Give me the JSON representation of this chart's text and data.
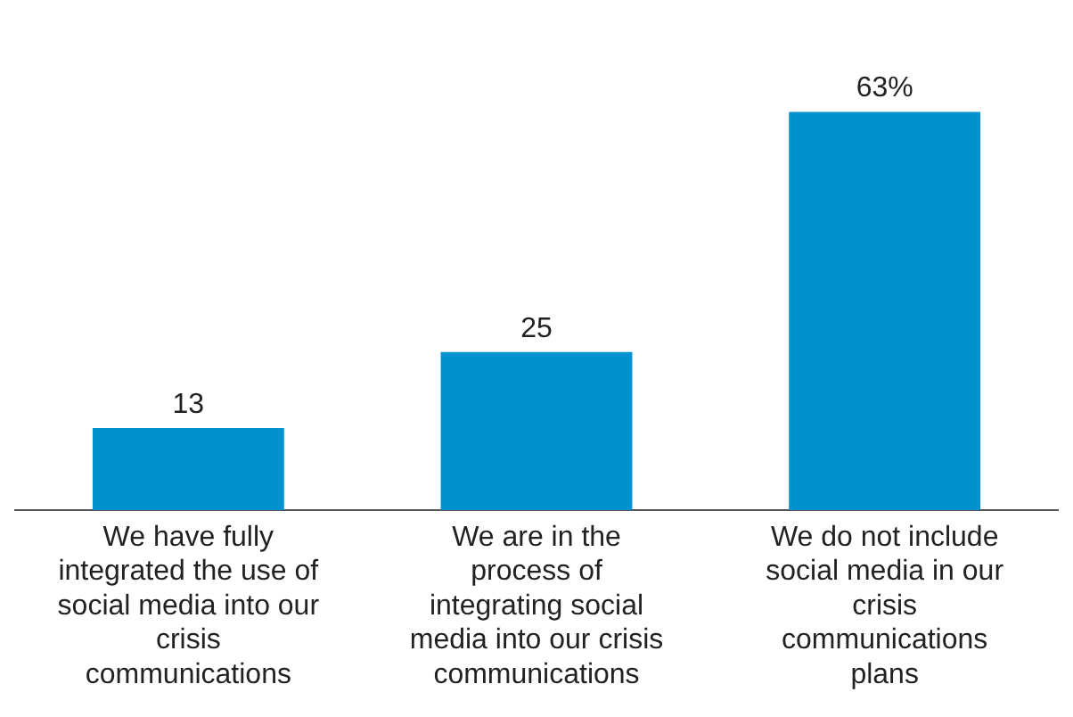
{
  "chart_data": {
    "type": "bar",
    "categories": [
      "We have fully integrated the use of social media into our crisis communications",
      "We are in the process of integrating social media into our crisis communications",
      "We do not include social media in our crisis communications plans"
    ],
    "values": [
      13,
      25,
      63
    ],
    "value_labels": [
      "13",
      "25",
      "63%"
    ],
    "color": "#0091d0",
    "grid": false,
    "legend": false
  }
}
